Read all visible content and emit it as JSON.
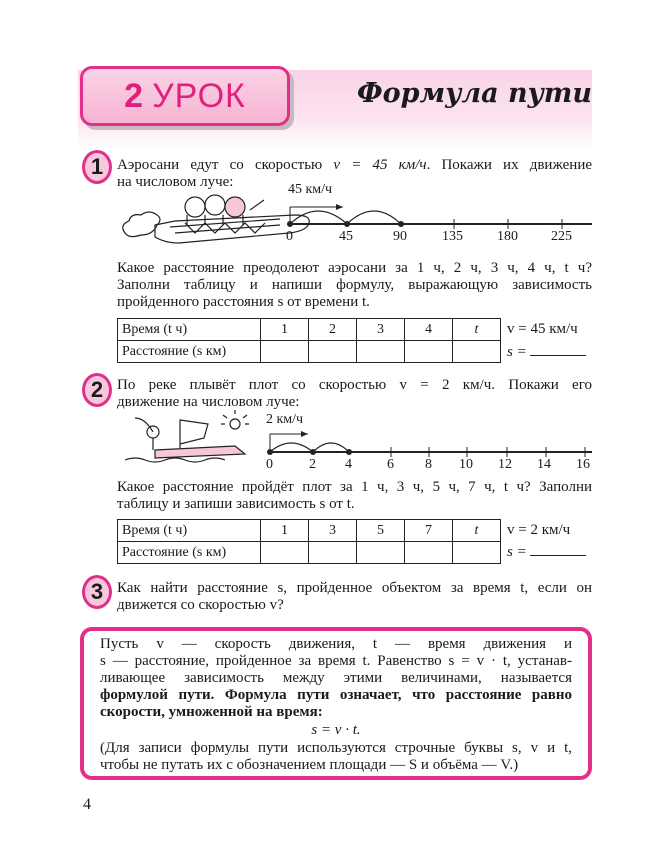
{
  "header": {
    "lesson_number": "2",
    "lesson_word": "УРОК",
    "title": "Формула пути"
  },
  "accent_color": "#e0308a",
  "ex1": {
    "number": "1",
    "lines": [
      "Аэросани едут со скоростью",
      "v = 45 км/ч",
      ". Покажи их движение",
      "на числовом луче:"
    ],
    "arrow_label": "45 км/ч",
    "ray_labels": [
      "0",
      "45",
      "90",
      "135",
      "180",
      "225"
    ],
    "marked_points": [
      "0",
      "45",
      "90"
    ],
    "question": [
      "Какое расстояние преодолеют аэросани за 1 ч, 2 ч, 3 ч, 4 ч, t ч?",
      "Заполни таблицу и напиши формулу, выражающую зависимость",
      "пройденного расстояния s от времени t."
    ],
    "table": {
      "row1_header": "Время (t ч)",
      "row2_header": "Расстояние (s км)",
      "times": [
        "1",
        "2",
        "3",
        "4",
        "t"
      ]
    },
    "speed": "v = 45 км/ч",
    "formula_prompt": "s ="
  },
  "ex2": {
    "number": "2",
    "lines": [
      "По реке плывёт плот со скоростью v = 2 км/ч. Покажи его",
      "движение на числовом луче:"
    ],
    "arrow_label": "2 км/ч",
    "ray_labels": [
      "0",
      "2",
      "4",
      "6",
      "8",
      "10",
      "12",
      "14",
      "16"
    ],
    "marked_points": [
      "0",
      "2",
      "4"
    ],
    "question": [
      "Какое расстояние пройдёт плот за 1 ч, 3 ч, 5 ч, 7 ч, t ч? Заполни",
      "таблицу и запиши зависимость s от t."
    ],
    "table": {
      "row1_header": "Время (t ч)",
      "row2_header": "Расстояние (s км)",
      "times": [
        "1",
        "3",
        "5",
        "7",
        "t"
      ]
    },
    "speed": "v = 2 км/ч",
    "formula_prompt": "s ="
  },
  "ex3": {
    "number": "3",
    "lines": [
      "Как найти расстояние s, пройденное объектом за время t, если он",
      "движется со скоростью v?"
    ]
  },
  "rule_box": {
    "lines": [
      "Пусть v — скорость движения, t — время движения и",
      "s — расстояние, пройденное за время t. Равенство s = v · t, устанав-",
      "ливающее зависимость между этими величинами, называется",
      "формулой пути. Формула пути означает, что расстояние равно",
      "скорости, умноженной на время:",
      "s = v · t.",
      "(Для записи формулы пути используются строчные буквы s, v и t,",
      "чтобы не путать их с обозначением площади — S и объёма — V.)"
    ]
  },
  "page_number": "4"
}
